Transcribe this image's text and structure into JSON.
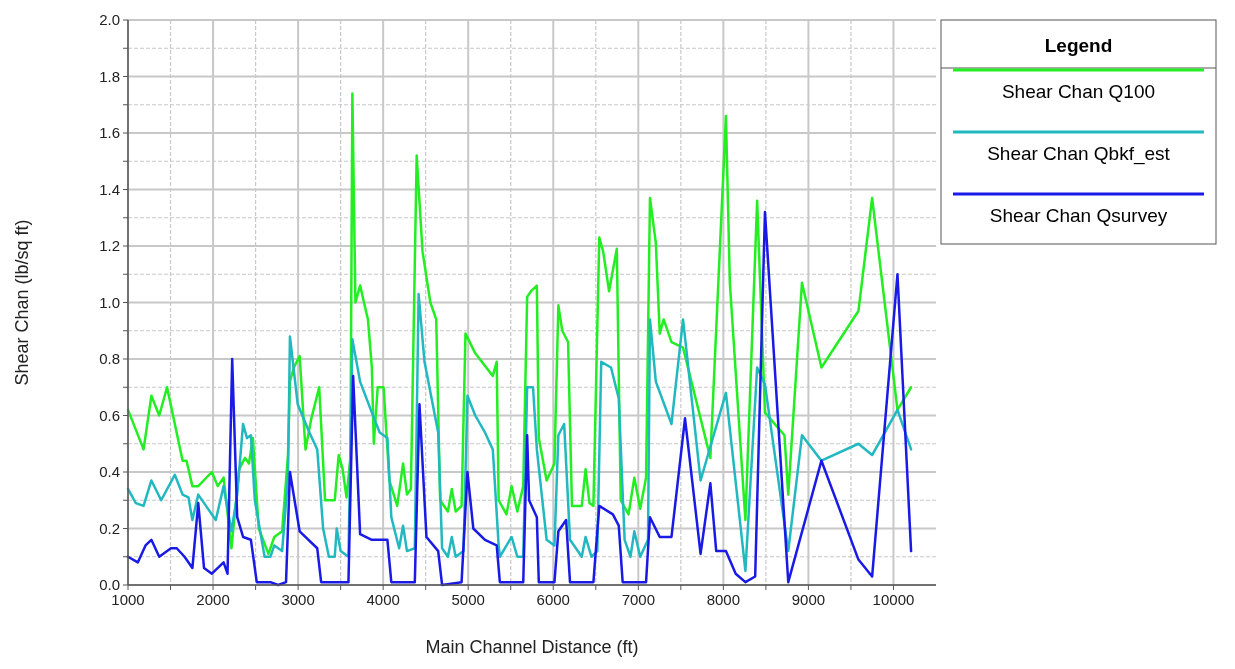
{
  "chart_data": {
    "type": "line",
    "xlabel": "Main Channel Distance (ft)",
    "ylabel": "Shear Chan (lb/sq ft)",
    "legend_title": "Legend",
    "legend": "top right",
    "grid": true,
    "line_style": "solid",
    "xlim": [
      1000,
      10500
    ],
    "ylim": [
      0,
      2
    ],
    "xticks": [
      1000,
      {
        "value": 1500,
        "label": null
      },
      2000,
      {
        "value": 2500,
        "label": null
      },
      3000,
      {
        "value": 3500,
        "label": null
      },
      4000,
      {
        "value": 4500,
        "label": null
      },
      5000,
      {
        "value": 5500,
        "label": null
      },
      6000,
      {
        "value": 6500,
        "label": null
      },
      7000,
      {
        "value": 7500,
        "label": null
      },
      8000,
      {
        "value": 8500,
        "label": null
      },
      9000,
      {
        "value": 9500,
        "label": null
      },
      10000
    ],
    "yticks": [
      {
        "value": 0,
        "label": "0.0"
      },
      {
        "value": 0.1,
        "label": null
      },
      0.2,
      {
        "value": 0.3,
        "label": null
      },
      0.4,
      {
        "value": 0.5,
        "label": null
      },
      0.6,
      {
        "value": 0.7,
        "label": null
      },
      0.8,
      {
        "value": 0.9,
        "label": null
      },
      {
        "value": 1,
        "label": "1.0"
      },
      {
        "value": 1.1,
        "label": null
      },
      1.2,
      {
        "value": 1.3,
        "label": null
      },
      1.4,
      {
        "value": 1.5,
        "label": null
      },
      1.6,
      {
        "value": 1.7,
        "label": null
      },
      1.8,
      {
        "value": 1.9,
        "label": null
      },
      {
        "value": 2,
        "label": "2.0"
      }
    ],
    "series": [
      {
        "name": "Shear Chan Q100",
        "color": "#22ee22",
        "x": [
          1000,
          1183,
          1275,
          1367,
          1459,
          1642,
          1688,
          1757,
          1826,
          1986,
          2055,
          2124,
          2216,
          2307,
          2376,
          2422,
          2468,
          2537,
          2651,
          2720,
          2812,
          2881,
          2904,
          2950,
          3018,
          3087,
          3156,
          3248,
          3317,
          3431,
          3477,
          3523,
          3569,
          3615,
          3638,
          3674,
          3729,
          3821,
          3867,
          3890,
          3936,
          4005,
          4073,
          4165,
          4234,
          4280,
          4326,
          4394,
          4463,
          4555,
          4624,
          4670,
          4761,
          4807,
          4853,
          4922,
          4968,
          5083,
          5289,
          5335,
          5358,
          5450,
          5510,
          5578,
          5647,
          5693,
          5739,
          5807,
          5830,
          5922,
          6014,
          6060,
          6106,
          6174,
          6220,
          6335,
          6380,
          6426,
          6472,
          6541,
          6587,
          6656,
          6747,
          6793,
          6885,
          6953,
          7022,
          7091,
          7137,
          7206,
          7252,
          7298,
          7390,
          7526,
          7847,
          8030,
          8076,
          8259,
          8397,
          8489,
          8718,
          8763,
          8924,
          9153,
          9588,
          9749,
          10047,
          10207
        ],
        "values": [
          0.62,
          0.48,
          0.67,
          0.6,
          0.7,
          0.44,
          0.44,
          0.35,
          0.35,
          0.4,
          0.35,
          0.38,
          0.13,
          0.41,
          0.45,
          0.43,
          0.52,
          0.2,
          0.11,
          0.17,
          0.19,
          0.46,
          0.72,
          0.77,
          0.81,
          0.48,
          0.59,
          0.7,
          0.3,
          0.3,
          0.46,
          0.41,
          0.31,
          0.45,
          1.74,
          1.0,
          1.06,
          0.94,
          0.77,
          0.5,
          0.7,
          0.7,
          0.37,
          0.28,
          0.43,
          0.32,
          0.34,
          1.52,
          1.18,
          1.0,
          0.94,
          0.3,
          0.26,
          0.34,
          0.26,
          0.28,
          0.89,
          0.82,
          0.74,
          0.79,
          0.3,
          0.25,
          0.35,
          0.26,
          0.35,
          1.02,
          1.04,
          1.06,
          0.52,
          0.37,
          0.43,
          0.99,
          0.9,
          0.86,
          0.28,
          0.28,
          0.41,
          0.29,
          0.28,
          1.23,
          1.18,
          1.04,
          1.19,
          0.3,
          0.25,
          0.38,
          0.27,
          0.38,
          1.37,
          1.21,
          0.89,
          0.94,
          0.86,
          0.84,
          0.45,
          1.66,
          1.07,
          0.23,
          1.36,
          0.61,
          0.53,
          0.32,
          1.07,
          0.77,
          0.97,
          1.37,
          0.62,
          0.7
        ]
      },
      {
        "name": "Shear Chan Qbkf_est",
        "color": "#22b8c0",
        "x": [
          1000,
          1092,
          1183,
          1275,
          1390,
          1550,
          1642,
          1711,
          1757,
          1826,
          1917,
          2032,
          2124,
          2216,
          2284,
          2353,
          2399,
          2445,
          2491,
          2606,
          2674,
          2720,
          2812,
          2881,
          2904,
          2995,
          3133,
          3225,
          3294,
          3362,
          3431,
          3454,
          3500,
          3592,
          3638,
          3729,
          3867,
          3959,
          4050,
          4096,
          4188,
          4234,
          4280,
          4372,
          4417,
          4486,
          4647,
          4693,
          4761,
          4807,
          4853,
          4945,
          4991,
          5083,
          5197,
          5289,
          5358,
          5372,
          5510,
          5578,
          5647,
          5693,
          5762,
          5807,
          5922,
          6014,
          6060,
          6128,
          6197,
          6335,
          6380,
          6449,
          6518,
          6564,
          6679,
          6770,
          6839,
          6908,
          6953,
          7022,
          7114,
          7137,
          7206,
          7390,
          7526,
          7732,
          8030,
          8259,
          8397,
          8489,
          8763,
          8924,
          9153,
          9588,
          9749,
          10047,
          10207
        ],
        "values": [
          0.34,
          0.29,
          0.28,
          0.37,
          0.3,
          0.39,
          0.32,
          0.31,
          0.23,
          0.32,
          0.28,
          0.23,
          0.35,
          0.19,
          0.32,
          0.57,
          0.52,
          0.53,
          0.3,
          0.1,
          0.1,
          0.14,
          0.12,
          0.38,
          0.88,
          0.64,
          0.54,
          0.48,
          0.2,
          0.1,
          0.1,
          0.2,
          0.12,
          0.1,
          0.87,
          0.72,
          0.61,
          0.54,
          0.52,
          0.24,
          0.13,
          0.21,
          0.12,
          0.13,
          1.03,
          0.79,
          0.54,
          0.13,
          0.1,
          0.17,
          0.1,
          0.12,
          0.67,
          0.6,
          0.54,
          0.48,
          0.14,
          0.1,
          0.17,
          0.1,
          0.1,
          0.7,
          0.7,
          0.48,
          0.16,
          0.14,
          0.53,
          0.57,
          0.16,
          0.1,
          0.17,
          0.1,
          0.12,
          0.79,
          0.77,
          0.66,
          0.16,
          0.1,
          0.19,
          0.1,
          0.16,
          0.94,
          0.72,
          0.57,
          0.94,
          0.37,
          0.68,
          0.05,
          0.77,
          0.71,
          0.12,
          0.53,
          0.44,
          0.5,
          0.46,
          0.62,
          0.48
        ]
      },
      {
        "name": "Shear Chan Qsurvey",
        "color": "#1a1ae6",
        "x": [
          1000,
          1115,
          1206,
          1275,
          1367,
          1505,
          1573,
          1665,
          1757,
          1826,
          1894,
          1986,
          2124,
          2170,
          2225,
          2284,
          2353,
          2445,
          2514,
          2674,
          2766,
          2858,
          2904,
          3018,
          3225,
          3271,
          3500,
          3592,
          3647,
          3729,
          3867,
          4050,
          4096,
          4372,
          4427,
          4509,
          4647,
          4693,
          4922,
          4991,
          5060,
          5197,
          5335,
          5372,
          5647,
          5693,
          5716,
          5807,
          5830,
          6014,
          6060,
          6151,
          6197,
          6472,
          6541,
          6701,
          6770,
          6816,
          7091,
          7137,
          7252,
          7390,
          7549,
          7732,
          7847,
          7916,
          8030,
          8145,
          8259,
          8374,
          8489,
          8763,
          9153,
          9588,
          9749,
          10047,
          10207
        ],
        "values": [
          0.1,
          0.08,
          0.14,
          0.16,
          0.1,
          0.13,
          0.13,
          0.1,
          0.06,
          0.29,
          0.06,
          0.04,
          0.08,
          0.04,
          0.8,
          0.24,
          0.17,
          0.16,
          0.01,
          0.01,
          0.0,
          0.01,
          0.4,
          0.19,
          0.13,
          0.01,
          0.01,
          0.01,
          0.74,
          0.18,
          0.16,
          0.16,
          0.01,
          0.01,
          0.64,
          0.17,
          0.12,
          0.0,
          0.01,
          0.4,
          0.2,
          0.16,
          0.14,
          0.01,
          0.01,
          0.53,
          0.3,
          0.24,
          0.01,
          0.01,
          0.19,
          0.23,
          0.01,
          0.01,
          0.28,
          0.25,
          0.21,
          0.01,
          0.01,
          0.24,
          0.17,
          0.17,
          0.59,
          0.11,
          0.36,
          0.12,
          0.12,
          0.04,
          0.01,
          0.03,
          1.32,
          0.01,
          0.44,
          0.09,
          0.03,
          1.1,
          0.12
        ]
      }
    ]
  }
}
